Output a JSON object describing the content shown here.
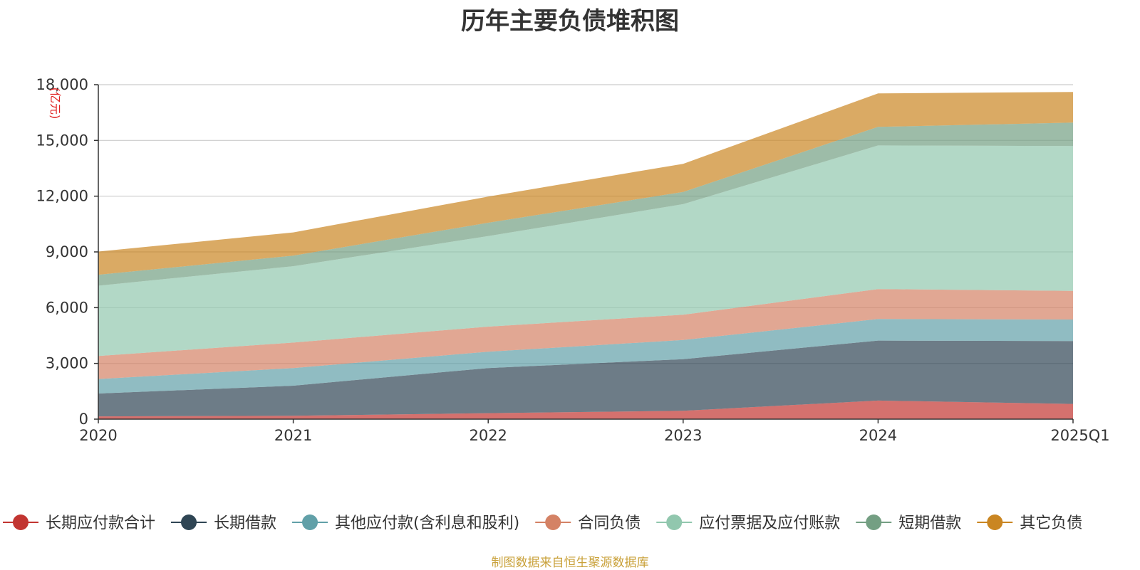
{
  "chart_data": {
    "type": "area",
    "stacked": true,
    "title": "历年主要负债堆积图",
    "unit": "(亿元)",
    "categories": [
      "2020",
      "2021",
      "2022",
      "2023",
      "2024",
      "2025Q1"
    ],
    "ylim": [
      0,
      18000
    ],
    "yticks": [
      "0",
      "3,000",
      "6,000",
      "9,000",
      "12,000",
      "15,000",
      "18,000"
    ],
    "grid": true,
    "legend_position": "bottom",
    "series": [
      {
        "name": "长期应付款合计",
        "color": "#c23531",
        "values": [
          150,
          180,
          320,
          450,
          1000,
          820
        ]
      },
      {
        "name": "长期借款",
        "color": "#2f4554",
        "values": [
          1230,
          1620,
          2430,
          2780,
          3230,
          3380
        ]
      },
      {
        "name": "其他应付款(含利息和股利)",
        "color": "#61a0a8",
        "values": [
          780,
          950,
          880,
          1030,
          1160,
          1160
        ]
      },
      {
        "name": "合同负债",
        "color": "#d48265",
        "values": [
          1240,
          1370,
          1350,
          1360,
          1610,
          1540
        ]
      },
      {
        "name": "应付票据及应付账款",
        "color": "#91c7ae",
        "values": [
          3780,
          4110,
          4870,
          5950,
          7730,
          7800
        ]
      },
      {
        "name": "短期借款",
        "color": "#749f83",
        "values": [
          590,
          570,
          720,
          660,
          1000,
          1260
        ]
      },
      {
        "name": "其它负债",
        "color": "#ca8622",
        "values": [
          1250,
          1250,
          1410,
          1510,
          1800,
          1650
        ]
      }
    ]
  },
  "source_note": "制图数据来自恒生聚源数据库"
}
